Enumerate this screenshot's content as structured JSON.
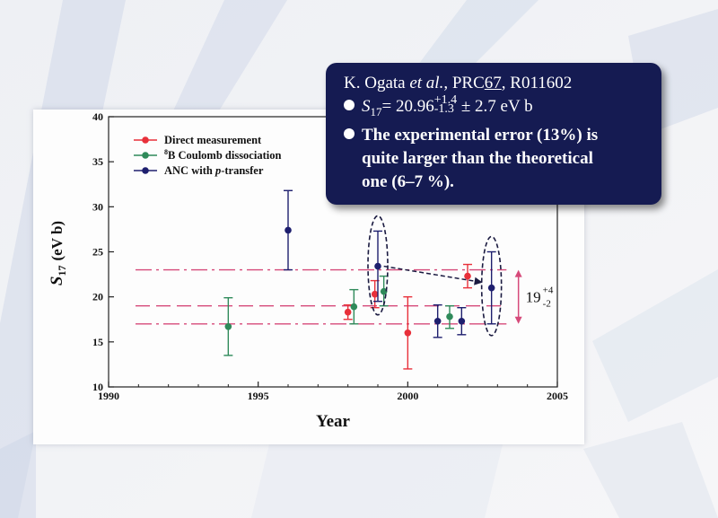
{
  "colors": {
    "direct": "#e8303a",
    "coulomb": "#2f8a5a",
    "anc": "#1e1f6e",
    "refline": "#d64a7a",
    "box_bg": "#151b52"
  },
  "chart_data": {
    "type": "scatter",
    "xlabel": "Year",
    "ylabel_main": "S",
    "ylabel_sub": "17",
    "ylabel_unit": "(eV b)",
    "xlim": [
      1990,
      2005
    ],
    "ylim": [
      10,
      40
    ],
    "xticks": [
      1990,
      1995,
      2000,
      2005
    ],
    "yticks": [
      10,
      15,
      20,
      25,
      30,
      35,
      40
    ],
    "legend_position": "top-left",
    "series": [
      {
        "name": "Direct measurement",
        "color_key": "direct",
        "points": [
          {
            "x": 1998.0,
            "y": 18.3,
            "lo": 17.5,
            "hi": 19.1
          },
          {
            "x": 1998.9,
            "y": 20.3,
            "lo": 18.8,
            "hi": 21.8
          },
          {
            "x": 2000.0,
            "y": 16.0,
            "lo": 12.0,
            "hi": 20.0
          },
          {
            "x": 2002.0,
            "y": 22.3,
            "lo": 21.0,
            "hi": 23.6
          }
        ]
      },
      {
        "name": "Coulomb dissociation",
        "legend_prefix": "8",
        "legend_suffix": "B Coulomb dissociation",
        "color_key": "coulomb",
        "points": [
          {
            "x": 1994.0,
            "y": 16.7,
            "lo": 13.5,
            "hi": 19.9
          },
          {
            "x": 1998.2,
            "y": 18.9,
            "lo": 17.0,
            "hi": 20.8
          },
          {
            "x": 1999.2,
            "y": 20.6,
            "lo": 19.0,
            "hi": 22.3
          },
          {
            "x": 2001.4,
            "y": 17.8,
            "lo": 16.5,
            "hi": 19.0
          }
        ]
      },
      {
        "name": "ANC with p-transfer",
        "legend_prefix": "ANC with ",
        "legend_italic": "p",
        "legend_suffix": "-transfer",
        "color_key": "anc",
        "points": [
          {
            "x": 1996.0,
            "y": 27.4,
            "lo": 23.0,
            "hi": 31.8
          },
          {
            "x": 1999.0,
            "y": 23.4,
            "lo": 19.5,
            "hi": 27.3
          },
          {
            "x": 2001.0,
            "y": 17.3,
            "lo": 15.5,
            "hi": 19.1
          },
          {
            "x": 2001.8,
            "y": 17.3,
            "lo": 15.8,
            "hi": 18.8
          },
          {
            "x": 2002.8,
            "y": 21.0,
            "lo": 17.0,
            "hi": 25.0
          }
        ]
      }
    ],
    "ref_lines": [
      {
        "y": 23.0,
        "style": "dashdot"
      },
      {
        "y": 19.0,
        "style": "dashed"
      },
      {
        "y": 17.0,
        "style": "dashdot"
      }
    ],
    "range_annotation": {
      "from": 17.0,
      "to": 23.0,
      "x": 2003.7,
      "base": "19",
      "plus": "+4",
      "minus": "-2"
    },
    "highlight_ellipses": [
      {
        "x": 1999.0,
        "y_center": 23.4,
        "y_top": 29.0,
        "y_bottom": 18.0
      },
      {
        "x": 2002.8,
        "y_center": 21.2,
        "y_top": 26.7,
        "y_bottom": 15.7
      }
    ],
    "arrow": {
      "from_x": 1999.2,
      "from_y": 23.4,
      "to_x": 2002.5,
      "to_y": 21.6
    }
  },
  "info_box": {
    "ref_author": "K. Ogata ",
    "ref_etal": "et al.",
    "ref_journal": ", PRC",
    "ref_volume": "67",
    "ref_page": ", R011602",
    "s_symbol": "S",
    "s_sub": "17",
    "s_eq": "= 20.96",
    "s_plus": "+1.4",
    "s_minus": "-1.3",
    "s_err": " ± 2.7 eV b",
    "note_line1": "The experimental error (13%) is",
    "note_line2": "quite larger than the theoretical",
    "note_line3": "one (6–7 %)."
  }
}
